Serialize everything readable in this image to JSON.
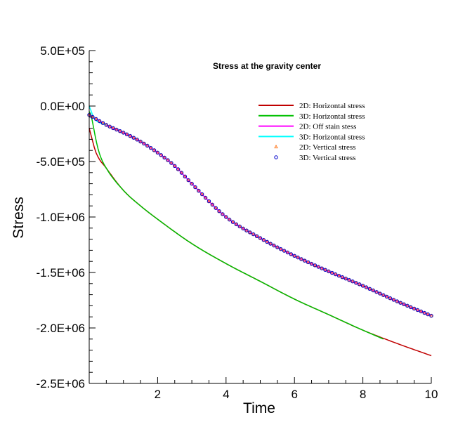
{
  "chart_data": {
    "type": "line",
    "title": "Stress at the gravity center",
    "xlabel": "Time",
    "ylabel": "Stress",
    "xlim": [
      0,
      10
    ],
    "ylim": [
      -2500000,
      500000
    ],
    "xticks": [
      2,
      4,
      6,
      8,
      10
    ],
    "xtick_labels": [
      "2",
      "4",
      "6",
      "8",
      "10"
    ],
    "yticks": [
      500000,
      0,
      -500000,
      -1000000,
      -1500000,
      -2000000,
      -2500000
    ],
    "ytick_labels": [
      "5.0E+05",
      "0.0E+00",
      "-5.0E+05",
      "-1.0E+06",
      "-1.5E+06",
      "-2.0E+06",
      "-2.5E+06"
    ],
    "grid": false,
    "legend_position": "top-right",
    "series": [
      {
        "name": "2D: Horizontal stress",
        "style": "line",
        "color": "#c00000",
        "x": [
          0.0,
          0.2,
          0.5,
          1.0,
          1.5,
          2.0,
          3.0,
          4.0,
          5.0,
          6.0,
          7.0,
          8.0,
          9.0,
          10.0
        ],
        "y": [
          -200000,
          -420000,
          -560000,
          -760000,
          -900000,
          -1020000,
          -1240000,
          -1420000,
          -1580000,
          -1740000,
          -1880000,
          -2020000,
          -2140000,
          -2250000
        ]
      },
      {
        "name": "3D: Horizontal stress",
        "style": "line",
        "color": "#00c000",
        "x": [
          0.0,
          0.05,
          0.1,
          0.2,
          0.3,
          0.5,
          1.0,
          1.5,
          2.0,
          3.0,
          4.0,
          5.0,
          6.0,
          7.0,
          8.0,
          8.6
        ],
        "y": [
          -50000,
          -80000,
          -150000,
          -310000,
          -430000,
          -560000,
          -760000,
          -900000,
          -1020000,
          -1240000,
          -1420000,
          -1580000,
          -1740000,
          -1880000,
          -2020000,
          -2100000
        ]
      },
      {
        "name": "2D: Off stain stess",
        "style": "line",
        "color": "#ff00ff",
        "x": [
          0.0,
          0.5,
          1.0,
          1.5,
          2.0,
          2.5,
          3.0,
          4.0,
          5.0,
          6.0,
          7.0,
          8.0,
          9.0,
          10.0
        ],
        "y": [
          -80000,
          -170000,
          -240000,
          -320000,
          -420000,
          -540000,
          -700000,
          -1000000,
          -1190000,
          -1350000,
          -1490000,
          -1620000,
          -1760000,
          -1890000
        ]
      },
      {
        "name": "3D: Horizontal stress",
        "style": "line",
        "color": "#00ffff",
        "x": [
          0.0,
          0.05,
          0.1,
          0.2,
          0.3,
          0.4,
          0.5
        ],
        "y": [
          0,
          -40000,
          -80000,
          -130000,
          -150000,
          -160000,
          -170000
        ]
      },
      {
        "name": "2D: Vertical stress",
        "style": "marker",
        "marker": "triangle",
        "color": "#ff6600",
        "x": [
          0.0,
          0.5,
          1.0,
          1.5,
          2.0,
          2.5,
          3.0,
          4.0,
          5.0,
          6.0,
          7.0,
          8.0,
          9.0,
          10.0
        ],
        "y": [
          -80000,
          -170000,
          -240000,
          -320000,
          -420000,
          -540000,
          -700000,
          -1000000,
          -1190000,
          -1350000,
          -1490000,
          -1620000,
          -1760000,
          -1890000
        ]
      },
      {
        "name": "3D: Vertical stress",
        "style": "marker",
        "marker": "circle",
        "color": "#0000cc",
        "x": [
          0.0,
          0.5,
          1.0,
          1.5,
          2.0,
          2.5,
          3.0,
          4.0,
          5.0,
          6.0,
          7.0,
          8.0,
          9.0,
          10.0
        ],
        "y": [
          -80000,
          -170000,
          -240000,
          -320000,
          -420000,
          -540000,
          -700000,
          -1000000,
          -1190000,
          -1350000,
          -1490000,
          -1620000,
          -1760000,
          -1890000
        ]
      }
    ]
  }
}
